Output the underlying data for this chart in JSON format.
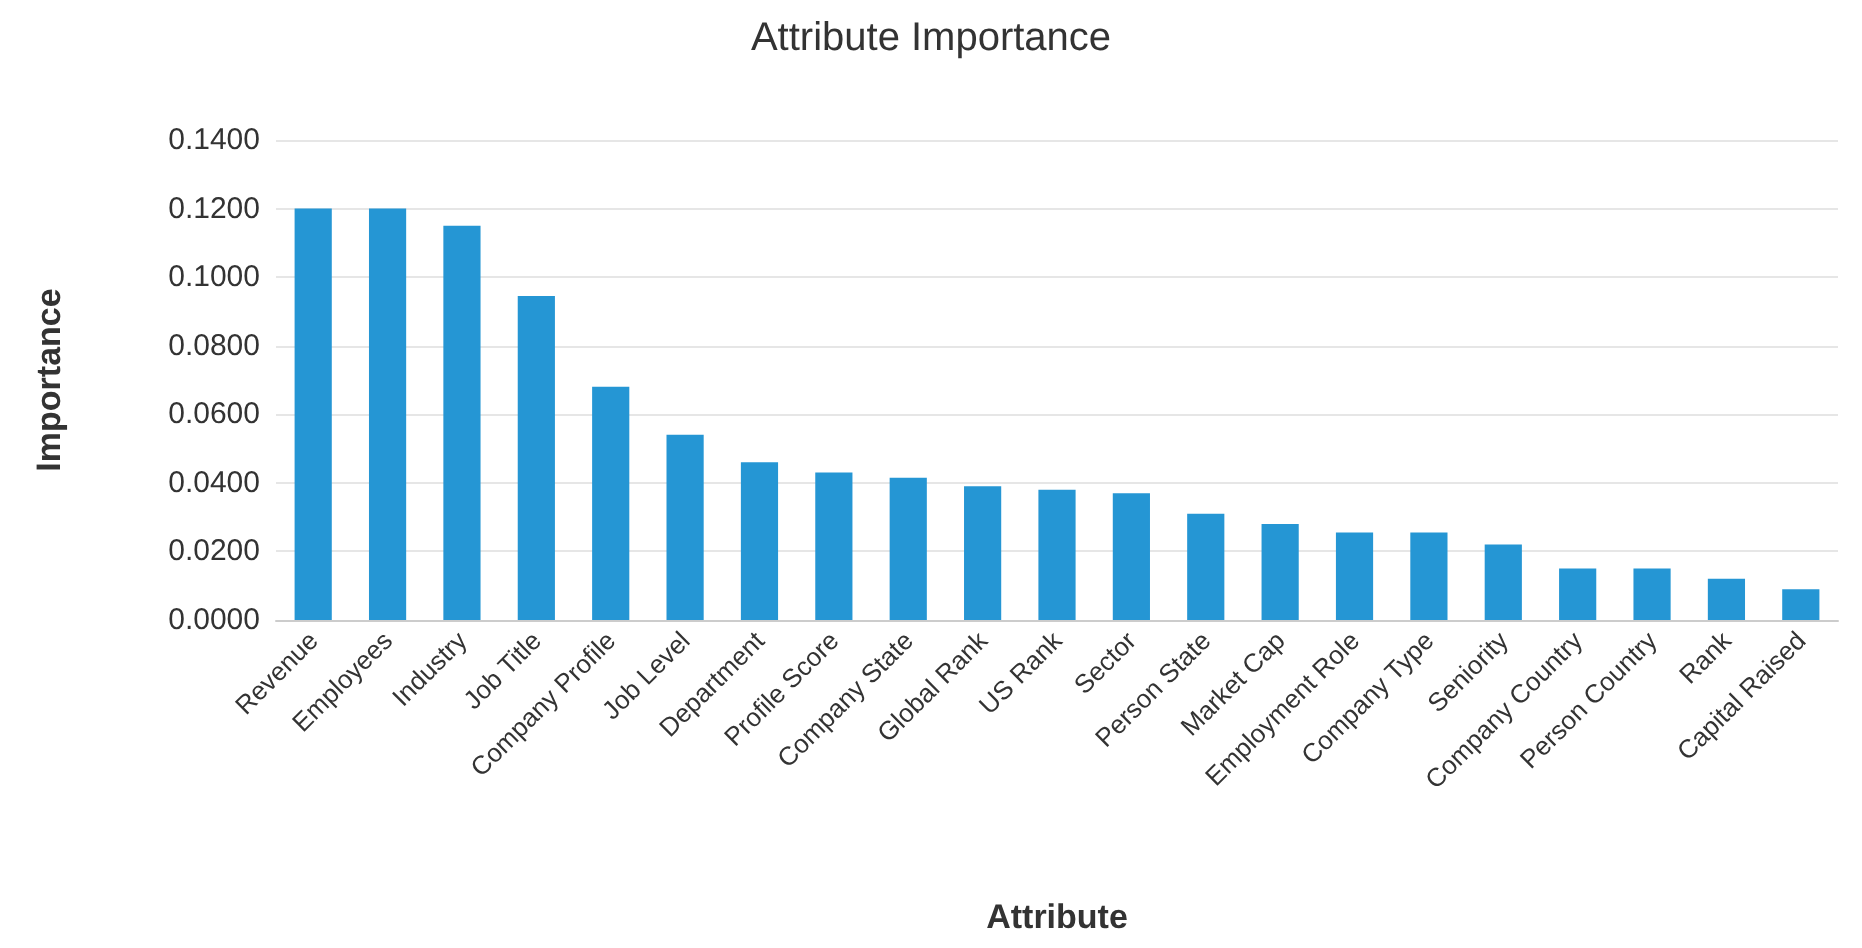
{
  "chart_data": {
    "type": "bar",
    "title": "Attribute Importance",
    "xlabel": "Attribute",
    "ylabel": "Importance",
    "categories": [
      "Revenue",
      "Employees",
      "Industry",
      "Job Title",
      "Company Profile",
      "Job Level",
      "Department",
      "Profile Score",
      "Company State",
      "Global Rank",
      "US Rank",
      "Sector",
      "Person State",
      "Market Cap",
      "Employment Role",
      "Company Type",
      "Seniority",
      "Company Country",
      "Person Country",
      "Rank",
      "Capital Raised"
    ],
    "values": [
      0.12,
      0.12,
      0.115,
      0.0945,
      0.068,
      0.054,
      0.046,
      0.043,
      0.0415,
      0.039,
      0.038,
      0.037,
      0.031,
      0.028,
      0.0255,
      0.0255,
      0.022,
      0.015,
      0.015,
      0.012,
      0.009
    ],
    "color": "#2596d4",
    "ylim": [
      0,
      0.14
    ],
    "yticks": [
      {
        "value": 0,
        "label": "0.0000"
      },
      {
        "value": 0.02,
        "label": "0.0200"
      },
      {
        "value": 0.04,
        "label": "0.0400"
      },
      {
        "value": 0.06,
        "label": "0.0600"
      },
      {
        "value": 0.08,
        "label": "0.0800"
      },
      {
        "value": 0.1,
        "label": "0.1000"
      },
      {
        "value": 0.12,
        "label": "0.1200"
      },
      {
        "value": 0.14,
        "label": "0.1400"
      }
    ],
    "grid": "y"
  }
}
